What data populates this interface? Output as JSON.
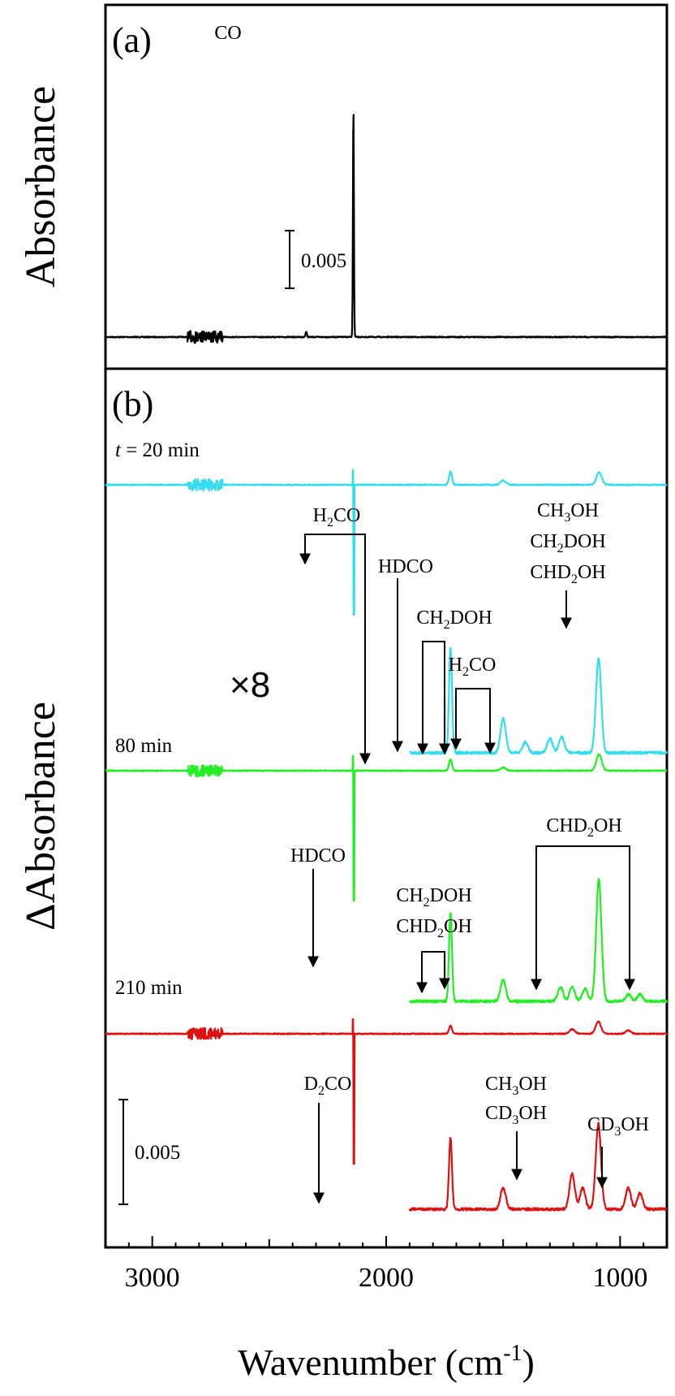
{
  "chart_data": {
    "type": "line",
    "xlabel": "Wavenumber (cm-1)",
    "xlabel_base": "Wavenumber (cm",
    "xlabel_sup": "-1",
    "xlabel_close": ")",
    "x_axis_reversed": true,
    "xlim": [
      3200,
      800
    ],
    "x_ticks": [
      3000,
      2000,
      1000
    ],
    "x_tick_labels": [
      "3000",
      "2000",
      "1000"
    ],
    "panels": [
      {
        "label": "(a)",
        "ylabel": "Absorbance",
        "scale_bar": "0.005",
        "annotations": [
          {
            "text": "CO",
            "x": 2140
          }
        ],
        "series": [
          {
            "name": "",
            "color": "#000000",
            "peaks": [
              {
                "x": 2140,
                "height": 0.0128,
                "width": 3
              },
              {
                "x": 2342,
                "height": 0.0003,
                "width": 4
              }
            ]
          }
        ]
      },
      {
        "label": "(b)",
        "ylabel": "ΔAbsorbance",
        "scale_bar": "0.005",
        "multiplier": "×8",
        "series": [
          {
            "name": "t = 20 min",
            "color": "#33ddee",
            "peaks": [
              {
                "x": 1725,
                "height": 0.00074
              },
              {
                "x": 1500,
                "height": 0.00024
              },
              {
                "x": 1090,
                "height": 0.0007
              }
            ]
          },
          {
            "name": "t = 20 min ×8",
            "color": "#33ddee",
            "peaks": [
              {
                "x": 1725,
                "height": 0.0059
              },
              {
                "x": 1500,
                "height": 0.0019
              },
              {
                "x": 1405,
                "height": 0.0006
              },
              {
                "x": 1300,
                "height": 0.0008
              },
              {
                "x": 1250,
                "height": 0.0009
              },
              {
                "x": 1092,
                "height": 0.0053
              }
            ]
          },
          {
            "name": "80 min",
            "color": "#22ee22",
            "peaks": [
              {
                "x": 1725,
                "height": 0.00062
              },
              {
                "x": 1500,
                "height": 0.00018
              },
              {
                "x": 1090,
                "height": 0.00093
              }
            ]
          },
          {
            "name": "80 min ×8",
            "color": "#22ee22",
            "peaks": [
              {
                "x": 1725,
                "height": 0.0049
              },
              {
                "x": 1500,
                "height": 0.0012
              },
              {
                "x": 1255,
                "height": 0.0008
              },
              {
                "x": 1205,
                "height": 0.0008
              },
              {
                "x": 1150,
                "height": 0.0007
              },
              {
                "x": 1091,
                "height": 0.0068
              },
              {
                "x": 965,
                "height": 0.0004
              },
              {
                "x": 915,
                "height": 0.0004
              }
            ]
          },
          {
            "name": "210 min",
            "color": "#dd1111",
            "peaks": [
              {
                "x": 1725,
                "height": 0.00045
              },
              {
                "x": 1205,
                "height": 0.00025
              },
              {
                "x": 1093,
                "height": 0.00068
              },
              {
                "x": 965,
                "height": 0.00018
              }
            ]
          },
          {
            "name": "210 min ×8",
            "color": "#dd1111",
            "peaks": [
              {
                "x": 1725,
                "height": 0.004
              },
              {
                "x": 1500,
                "height": 0.0012
              },
              {
                "x": 1205,
                "height": 0.002
              },
              {
                "x": 1160,
                "height": 0.0012
              },
              {
                "x": 1093,
                "height": 0.0048
              },
              {
                "x": 965,
                "height": 0.0012
              },
              {
                "x": 915,
                "height": 0.0009
              }
            ]
          }
        ]
      }
    ]
  },
  "labels": {
    "panel_a": "(a)",
    "panel_b": "(b)",
    "ylabel_a": "Absorbance",
    "ylabel_b": "ΔAbsorbance",
    "co": "CO",
    "scale_a": "0.005",
    "scale_b": "0.005",
    "mult": "×8",
    "t_italic": "t",
    "t20_rest": " = 20 min",
    "t80": "80 min",
    "t210": "210 min",
    "h2co_1_a": "H",
    "h2co_1_sub": "2",
    "h2co_1_b": "CO",
    "hdco_1": "HDCO",
    "ch2doh_1_a": "CH",
    "ch2doh_1_sub": "2",
    "ch2doh_1_b": "DOH",
    "h2co_2_a": "H",
    "h2co_2_sub": "2",
    "h2co_2_b": "CO",
    "ch3oh_1_a": "CH",
    "ch3oh_1_sub": "3",
    "ch3oh_1_b": "OH",
    "ch2doh_2_a": "CH",
    "ch2doh_2_sub": "2",
    "ch2doh_2_b": "DOH",
    "chd2oh_1_a": "CHD",
    "chd2oh_1_sub": "2",
    "chd2oh_1_b": "OH",
    "hdco_2": "HDCO",
    "ch2doh_3_a": "CH",
    "ch2doh_3_sub": "2",
    "ch2doh_3_b": "DOH",
    "chd2oh_2_a": "CHD",
    "chd2oh_2_sub": "2",
    "chd2oh_2_b": "OH",
    "chd2oh_3_a": "CHD",
    "chd2oh_3_sub": "2",
    "chd2oh_3_b": "OH",
    "d2co_a": "D",
    "d2co_sub": "2",
    "d2co_b": "CO",
    "ch3oh_2_a": "CH",
    "ch3oh_2_sub": "3",
    "ch3oh_2_b": "OH",
    "cd3oh_1_a": "CD",
    "cd3oh_1_sub": "3",
    "cd3oh_1_b": "OH",
    "cd3oh_2_a": "CD",
    "cd3oh_2_sub": "3",
    "cd3oh_2_b": "OH"
  }
}
